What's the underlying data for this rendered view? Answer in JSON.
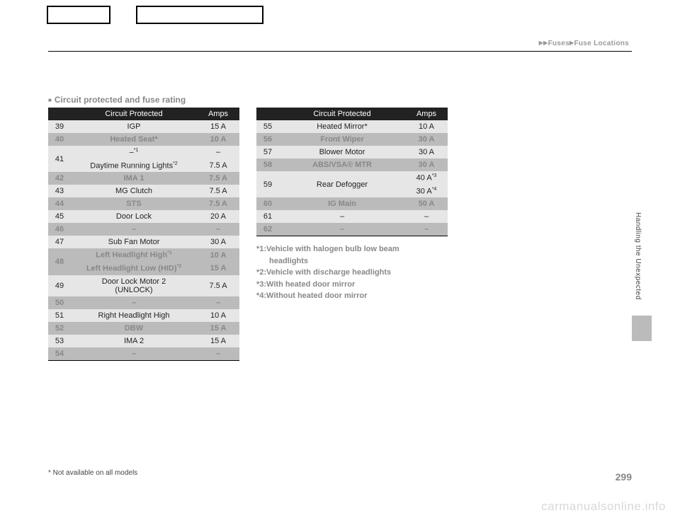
{
  "header": {
    "breadcrumb_a": "Fuses",
    "breadcrumb_b": "Fuse Locations"
  },
  "section_title": "Circuit protected and fuse rating",
  "table_headers": {
    "circuit": "Circuit Protected",
    "amps": "Amps"
  },
  "left_table": [
    {
      "n": "39",
      "c": "IGP",
      "a": "15 A",
      "cls": "light"
    },
    {
      "n": "40",
      "c": "Heated Seat*",
      "a": "10 A",
      "cls": "darkdim"
    },
    {
      "n": "41",
      "c": "–*1",
      "a": "–",
      "cls": "light",
      "sub": {
        "c": "Daytime Running Lights*2",
        "a": "7.5 A"
      }
    },
    {
      "n": "42",
      "c": "IMA 1",
      "a": "7.5 A",
      "cls": "darkdim"
    },
    {
      "n": "43",
      "c": "MG Clutch",
      "a": "7.5 A",
      "cls": "light"
    },
    {
      "n": "44",
      "c": "STS",
      "a": "7.5 A",
      "cls": "darkdim"
    },
    {
      "n": "45",
      "c": "Door Lock",
      "a": "20 A",
      "cls": "light"
    },
    {
      "n": "46",
      "c": "–",
      "a": "–",
      "cls": "darkdim"
    },
    {
      "n": "47",
      "c": "Sub Fan Motor",
      "a": "30 A",
      "cls": "light"
    },
    {
      "n": "48",
      "c": "Left Headlight High*1",
      "a": "10 A",
      "cls": "darkdim",
      "sub": {
        "c": "Left Headlight Low (HID)*2",
        "a": "15 A"
      }
    },
    {
      "n": "49",
      "c": "Door Lock Motor 2\n(UNLOCK)",
      "a": "7.5 A",
      "cls": "light"
    },
    {
      "n": "50",
      "c": "–",
      "a": "–",
      "cls": "darkdim"
    },
    {
      "n": "51",
      "c": "Right Headlight High",
      "a": "10 A",
      "cls": "light"
    },
    {
      "n": "52",
      "c": "DBW",
      "a": "15 A",
      "cls": "darkdim"
    },
    {
      "n": "53",
      "c": "IMA 2",
      "a": "15 A",
      "cls": "light"
    },
    {
      "n": "54",
      "c": "–",
      "a": "–",
      "cls": "darkdim"
    }
  ],
  "right_table": [
    {
      "n": "55",
      "c": "Heated Mirror*",
      "a": "10 A",
      "cls": "light"
    },
    {
      "n": "56",
      "c": "Front Wiper",
      "a": "30 A",
      "cls": "darkdim"
    },
    {
      "n": "57",
      "c": "Blower Motor",
      "a": "30 A",
      "cls": "light"
    },
    {
      "n": "58",
      "c": "ABS/VSA® MTR",
      "a": "30 A",
      "cls": "darkdim"
    },
    {
      "n": "59",
      "c": "Rear Defogger",
      "a": "40 A*3",
      "cls": "light",
      "sub": {
        "a": "30 A*4"
      }
    },
    {
      "n": "60",
      "c": "IG Main",
      "a": "50 A",
      "cls": "darkdim"
    },
    {
      "n": "61",
      "c": "–",
      "a": "–",
      "cls": "light"
    },
    {
      "n": "62",
      "c": "–",
      "a": "–",
      "cls": "darkdim"
    }
  ],
  "footnotes": [
    "*1:Vehicle with halogen bulb low beam",
    "headlights",
    "*2:Vehicle with discharge headlights",
    "*3:With heated door mirror",
    "*4:Without heated door mirror"
  ],
  "side_tab": "Handling the Unexpected",
  "bottom_note": "* Not available on all models",
  "page_num": "299",
  "watermark": "carmanualsonline.info"
}
